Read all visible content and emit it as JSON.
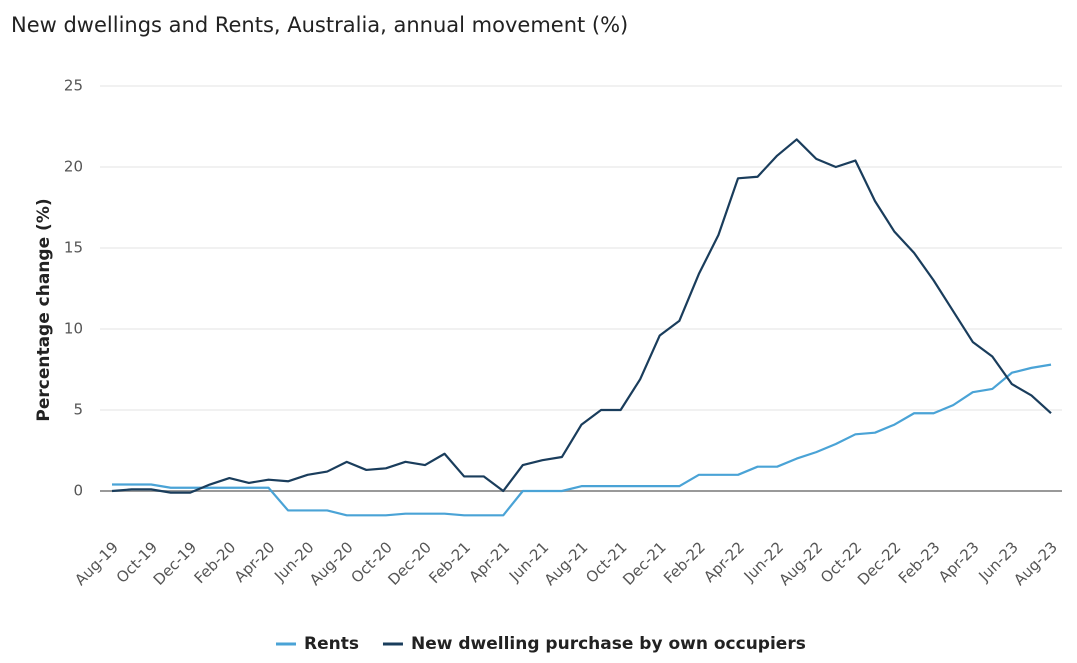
{
  "chart_data": {
    "type": "line",
    "title": "New dwellings and Rents, Australia, annual movement (%)",
    "y_label": "Percentage change (%)",
    "categories": [
      "Aug-19",
      null,
      "Oct-19",
      null,
      "Dec-19",
      null,
      "Feb-20",
      null,
      "Apr-20",
      null,
      "Jun-20",
      null,
      "Aug-20",
      null,
      "Oct-20",
      null,
      "Dec-20",
      null,
      "Feb-21",
      null,
      "Apr-21",
      null,
      "Jun-21",
      null,
      "Aug-21",
      null,
      "Oct-21",
      null,
      "Dec-21",
      null,
      "Feb-22",
      null,
      "Apr-22",
      null,
      "Jun-22",
      null,
      "Aug-22",
      null,
      "Oct-22",
      null,
      "Dec-22",
      null,
      "Feb-23",
      null,
      "Apr-23",
      null,
      "Jun-23",
      null,
      "Aug-23"
    ],
    "series": [
      {
        "name": "Rents",
        "color": "#4aa3d6",
        "values": [
          0.4,
          0.4,
          0.4,
          0.2,
          0.2,
          0.2,
          0.2,
          0.2,
          0.2,
          -1.2,
          -1.2,
          -1.2,
          -1.5,
          -1.5,
          -1.5,
          -1.4,
          -1.4,
          -1.4,
          -1.5,
          -1.5,
          -1.5,
          0.0,
          0.0,
          0.0,
          0.3,
          0.3,
          0.3,
          0.3,
          0.3,
          0.3,
          1.0,
          1.0,
          1.0,
          1.5,
          1.5,
          2.0,
          2.4,
          2.9,
          3.5,
          3.6,
          4.1,
          4.8,
          4.8,
          5.3,
          6.1,
          6.3,
          7.3,
          7.6,
          7.8
        ]
      },
      {
        "name": "New dwelling purchase by own occupiers",
        "color": "#1a3d5c",
        "values": [
          0.0,
          0.1,
          0.1,
          -0.1,
          -0.1,
          0.4,
          0.8,
          0.5,
          0.7,
          0.6,
          1.0,
          1.2,
          1.8,
          1.3,
          1.4,
          1.8,
          1.6,
          2.3,
          0.9,
          0.9,
          0.0,
          1.6,
          1.9,
          2.1,
          4.1,
          5.0,
          5.0,
          6.9,
          9.6,
          10.5,
          13.4,
          15.8,
          19.3,
          19.4,
          20.7,
          21.7,
          20.5,
          20.0,
          20.4,
          17.9,
          16.0,
          14.7,
          13.0,
          11.1,
          9.2,
          8.3,
          6.6,
          5.9,
          4.8
        ]
      }
    ],
    "ylim": [
      -2.5,
      25
    ],
    "yticks": [
      0,
      5,
      10,
      15,
      20,
      25
    ],
    "grid": true,
    "legend": "bottom"
  }
}
